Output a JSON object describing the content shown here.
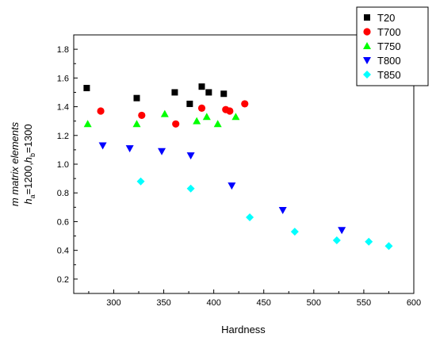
{
  "chart_data": {
    "type": "scatter",
    "title": "",
    "xlabel": "Hardness",
    "ylabel": {
      "line1": "m matrix elements",
      "line2": {
        "h1": "h",
        "sub1": "a",
        "mid": "=1200,",
        "h2": "h",
        "sub2": "b",
        "end": "=1300"
      }
    },
    "xlim": [
      260,
      600
    ],
    "ylim": [
      0.1,
      1.9
    ],
    "xticks": [
      "300",
      "350",
      "400",
      "450",
      "500",
      "550",
      "600"
    ],
    "yticks": [
      "0.2",
      "0.4",
      "0.6",
      "0.8",
      "1.0",
      "1.2",
      "1.4",
      "1.6",
      "1.8"
    ],
    "grid": false,
    "legend_position": "top-right",
    "series": [
      {
        "name": "T20",
        "marker": "square",
        "color": "#000000",
        "points": [
          [
            273,
            1.53
          ],
          [
            323,
            1.46
          ],
          [
            361,
            1.5
          ],
          [
            376,
            1.42
          ],
          [
            388,
            1.54
          ],
          [
            395,
            1.5
          ],
          [
            410,
            1.49
          ]
        ]
      },
      {
        "name": "T700",
        "marker": "circle",
        "color": "#ff0000",
        "points": [
          [
            287,
            1.37
          ],
          [
            328,
            1.34
          ],
          [
            362,
            1.28
          ],
          [
            388,
            1.39
          ],
          [
            412,
            1.38
          ],
          [
            416,
            1.37
          ],
          [
            431,
            1.42
          ]
        ]
      },
      {
        "name": "T750",
        "marker": "triangle-up",
        "color": "#00ff00",
        "points": [
          [
            274,
            1.28
          ],
          [
            323,
            1.28
          ],
          [
            351,
            1.35
          ],
          [
            383,
            1.3
          ],
          [
            393,
            1.33
          ],
          [
            404,
            1.28
          ],
          [
            422,
            1.33
          ]
        ]
      },
      {
        "name": "T800",
        "marker": "triangle-down",
        "color": "#0000ff",
        "points": [
          [
            289,
            1.13
          ],
          [
            316,
            1.11
          ],
          [
            348,
            1.09
          ],
          [
            377,
            1.06
          ],
          [
            418,
            0.85
          ],
          [
            469,
            0.68
          ],
          [
            528,
            0.54
          ]
        ]
      },
      {
        "name": "T850",
        "marker": "diamond",
        "color": "#00ffff",
        "points": [
          [
            327,
            0.88
          ],
          [
            377,
            0.83
          ],
          [
            436,
            0.63
          ],
          [
            481,
            0.53
          ],
          [
            523,
            0.47
          ],
          [
            555,
            0.46
          ],
          [
            575,
            0.43
          ]
        ]
      }
    ]
  }
}
